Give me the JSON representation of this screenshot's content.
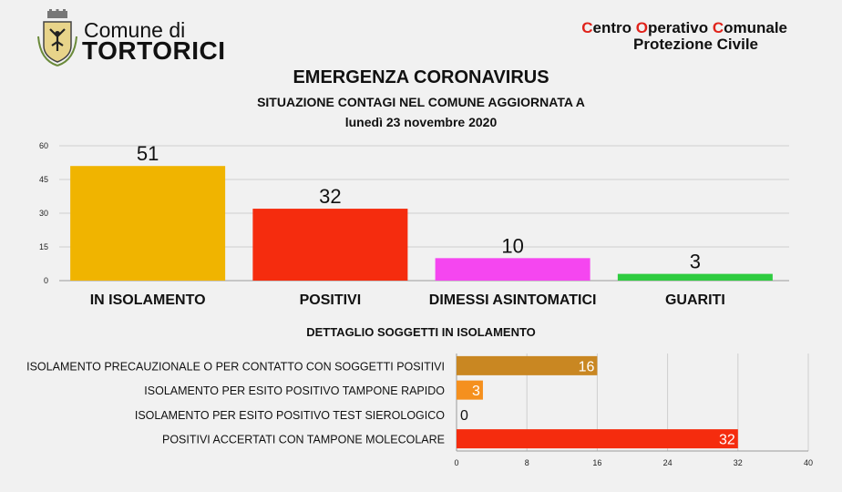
{
  "header": {
    "comune_line1": "Comune di",
    "comune_line2": "TORTORICI",
    "coc_line1_parts": [
      {
        "initial": "C",
        "rest": "entro "
      },
      {
        "initial": "O",
        "rest": "perativo "
      },
      {
        "initial": "C",
        "rest": "omunale"
      }
    ],
    "coc_line2": "Protezione Civile"
  },
  "title": "EMERGENZA CORONAVIRUS",
  "subtitle": "SITUAZIONE CONTAGI NEL COMUNE AGGIORNATA A",
  "date": "lunedì 23 novembre 2020",
  "detail_title": "DETTAGLIO SOGGETTI IN ISOLAMENTO",
  "colors": {
    "accent_red": "#e0231b",
    "grid": "#cfcfcf",
    "axis": "#9a9a9a"
  },
  "chart_data": [
    {
      "type": "bar",
      "orientation": "vertical",
      "categories": [
        "IN ISOLAMENTO",
        "POSITIVI",
        "DIMESSI ASINTOMATICI",
        "GUARITI"
      ],
      "values": [
        51,
        32,
        10,
        3
      ],
      "colors": [
        "#f0b400",
        "#f52c0e",
        "#f546f0",
        "#2ecc40"
      ],
      "ylim": [
        0,
        60
      ],
      "yticks": [
        0,
        15,
        30,
        45,
        60
      ],
      "data_labels": true,
      "grid": true
    },
    {
      "type": "bar",
      "orientation": "horizontal",
      "categories": [
        "ISOLAMENTO PRECAUZIONALE O PER CONTATTO CON SOGGETTI POSITIVI",
        "ISOLAMENTO PER ESITO POSITIVO TAMPONE RAPIDO",
        "ISOLAMENTO PER ESITO POSITIVO TEST SIEROLOGICO",
        "POSITIVI ACCERTATI CON TAMPONE MOLECOLARE"
      ],
      "values": [
        16,
        3,
        0,
        32
      ],
      "colors": [
        "#c98722",
        "#f5901e",
        "#f5901e",
        "#f52c0e"
      ],
      "xlim": [
        0,
        40
      ],
      "xticks": [
        0,
        8,
        16,
        24,
        32,
        40
      ],
      "data_labels": true,
      "grid": true
    }
  ]
}
